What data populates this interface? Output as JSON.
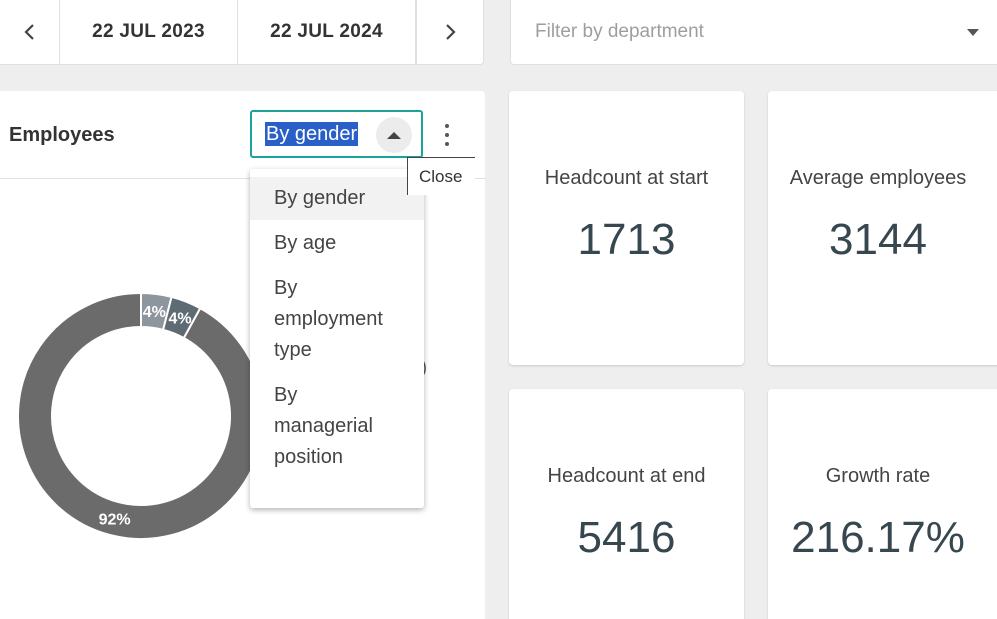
{
  "date_range": {
    "start": "22 JUL 2023",
    "end": "22 JUL 2024"
  },
  "filter": {
    "placeholder": "Filter by department"
  },
  "employees_card": {
    "title": "Employees",
    "selected": "By gender",
    "tooltip": "Close",
    "options": [
      "By gender",
      "By age",
      "By employment type",
      "By managerial position"
    ],
    "legend_fragment": ")"
  },
  "chart_data": {
    "type": "pie",
    "values": [
      92,
      4,
      4
    ],
    "labels": [
      "92%",
      "4%",
      "4%"
    ],
    "colors": [
      "#6b6b6b",
      "#8c969c",
      "#5f6b72"
    ]
  },
  "kpis": [
    {
      "label": "Headcount at start",
      "value": "1713"
    },
    {
      "label": "Average employees",
      "value": "3144"
    },
    {
      "label": "Headcount at end",
      "value": "5416"
    },
    {
      "label": "Growth rate",
      "value": "216.17%"
    }
  ]
}
